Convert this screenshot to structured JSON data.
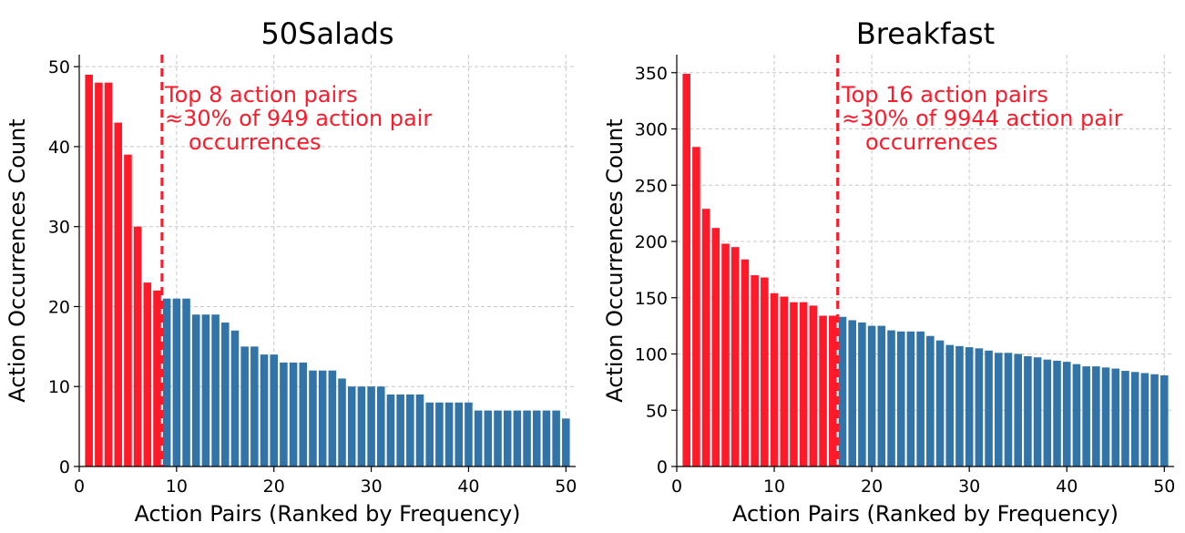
{
  "chart_data": [
    {
      "type": "bar",
      "title": "50Salads",
      "xlabel": "Action Pairs (Ranked by Frequency)",
      "ylabel": "Action Occurrences Count",
      "xlim": [
        0,
        51
      ],
      "ylim": [
        0,
        51.5
      ],
      "xticks": [
        0,
        10,
        20,
        30,
        40,
        50
      ],
      "yticks": [
        0,
        10,
        20,
        30,
        40,
        50
      ],
      "grid": true,
      "highlight_count": 8,
      "highlight_color": "#ff1a2a",
      "base_color": "#3274a8",
      "cutoff_x": 8.5,
      "annotation": [
        "Top 8 action pairs",
        "≈30% of 949 action pair",
        "occurrences"
      ],
      "x": [
        1,
        2,
        3,
        4,
        5,
        6,
        7,
        8,
        9,
        10,
        11,
        12,
        13,
        14,
        15,
        16,
        17,
        18,
        19,
        20,
        21,
        22,
        23,
        24,
        25,
        26,
        27,
        28,
        29,
        30,
        31,
        32,
        33,
        34,
        35,
        36,
        37,
        38,
        39,
        40,
        41,
        42,
        43,
        44,
        45,
        46,
        47,
        48,
        49,
        50
      ],
      "values": [
        49,
        48,
        48,
        43,
        39,
        30,
        23,
        22,
        21,
        21,
        21,
        19,
        19,
        19,
        18,
        17,
        15,
        15,
        14,
        14,
        13,
        13,
        13,
        12,
        12,
        12,
        11,
        10,
        10,
        10,
        10,
        9,
        9,
        9,
        9,
        8,
        8,
        8,
        8,
        8,
        7,
        7,
        7,
        7,
        7,
        7,
        7,
        7,
        7,
        6
      ]
    },
    {
      "type": "bar",
      "title": "Breakfast",
      "xlabel": "Action Pairs (Ranked by Frequency)",
      "ylabel": "Action Occurrences Count",
      "xlim": [
        0,
        51
      ],
      "ylim": [
        0,
        366
      ],
      "xticks": [
        0,
        10,
        20,
        30,
        40,
        50
      ],
      "yticks": [
        0,
        50,
        100,
        150,
        200,
        250,
        300,
        350
      ],
      "grid": true,
      "highlight_count": 16,
      "highlight_color": "#ff1a2a",
      "base_color": "#3274a8",
      "cutoff_x": 16.5,
      "annotation": [
        "Top 16 action pairs",
        "≈30% of 9944 action pair",
        "occurrences"
      ],
      "x": [
        1,
        2,
        3,
        4,
        5,
        6,
        7,
        8,
        9,
        10,
        11,
        12,
        13,
        14,
        15,
        16,
        17,
        18,
        19,
        20,
        21,
        22,
        23,
        24,
        25,
        26,
        27,
        28,
        29,
        30,
        31,
        32,
        33,
        34,
        35,
        36,
        37,
        38,
        39,
        40,
        41,
        42,
        43,
        44,
        45,
        46,
        47,
        48,
        49,
        50
      ],
      "values": [
        349,
        284,
        229,
        212,
        198,
        195,
        184,
        170,
        168,
        154,
        151,
        146,
        146,
        143,
        134,
        134,
        133,
        130,
        128,
        125,
        125,
        121,
        120,
        120,
        120,
        116,
        112,
        108,
        107,
        106,
        105,
        103,
        101,
        101,
        100,
        98,
        97,
        95,
        94,
        93,
        91,
        89,
        89,
        88,
        87,
        85,
        84,
        83,
        82,
        81
      ]
    }
  ]
}
